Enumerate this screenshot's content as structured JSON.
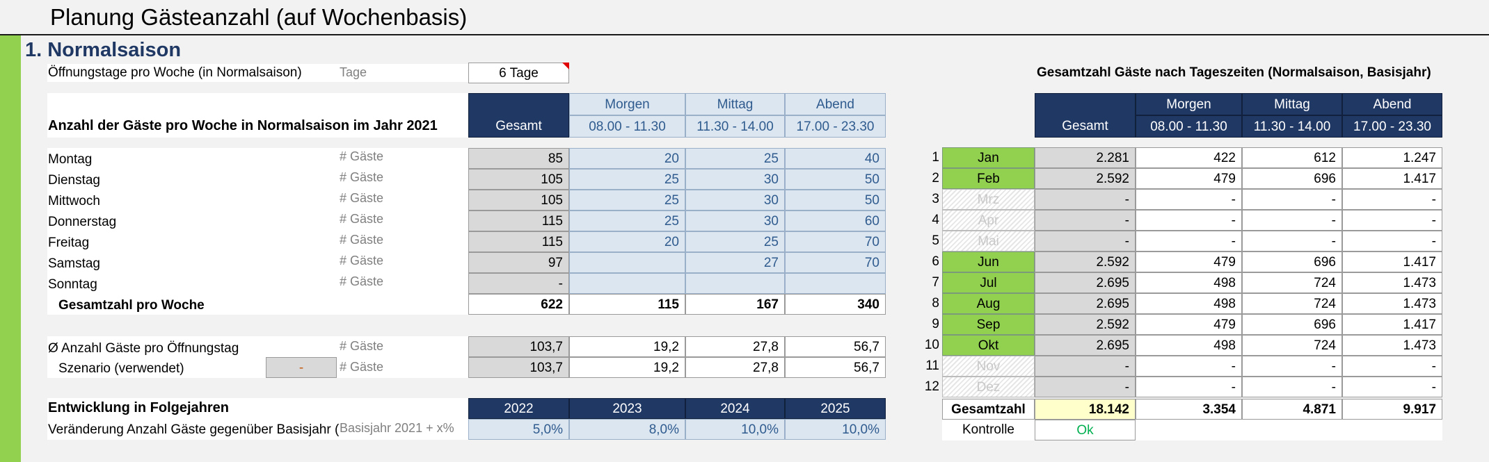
{
  "title": "Planung Gästeanzahl (auf Wochenbasis)",
  "section": "1. Normalsaison",
  "opening": {
    "label": "Öffnungstage pro Woche (in Normalsaison)",
    "unit": "Tage",
    "value": "6 Tage"
  },
  "weekly": {
    "title": "Anzahl der Gäste pro Woche in Normalsaison im Jahr 2021",
    "headers": {
      "gesamt": "Gesamt",
      "morgen": "Morgen",
      "mittag": "Mittag",
      "abend": "Abend",
      "morgen_time": "08.00 - 11.30",
      "mittag_time": "11.30 - 14.00",
      "abend_time": "17.00 - 23.30"
    },
    "unit": "# Gäste",
    "rows": [
      {
        "label": "Montag",
        "gesamt": "85",
        "morgen": "20",
        "mittag": "25",
        "abend": "40"
      },
      {
        "label": "Dienstag",
        "gesamt": "105",
        "morgen": "25",
        "mittag": "30",
        "abend": "50"
      },
      {
        "label": "Mittwoch",
        "gesamt": "105",
        "morgen": "25",
        "mittag": "30",
        "abend": "50"
      },
      {
        "label": "Donnerstag",
        "gesamt": "115",
        "morgen": "25",
        "mittag": "30",
        "abend": "60"
      },
      {
        "label": "Freitag",
        "gesamt": "115",
        "morgen": "20",
        "mittag": "25",
        "abend": "70"
      },
      {
        "label": "Samstag",
        "gesamt": "97",
        "morgen": "",
        "mittag": "27",
        "abend": "70"
      },
      {
        "label": "Sonntag",
        "gesamt": "-",
        "morgen": "",
        "mittag": "",
        "abend": ""
      }
    ],
    "total": {
      "label": "Gesamtzahl pro Woche",
      "gesamt": "622",
      "morgen": "115",
      "mittag": "167",
      "abend": "340"
    }
  },
  "average": {
    "label": "Ø Anzahl Gäste pro Öffnungstag",
    "unit": "# Gäste",
    "gesamt": "103,7",
    "morgen": "19,2",
    "mittag": "27,8",
    "abend": "56,7"
  },
  "scenario": {
    "label": "Szenario (verwendet)",
    "select": "-",
    "unit": "# Gäste",
    "gesamt": "103,7",
    "morgen": "19,2",
    "mittag": "27,8",
    "abend": "56,7"
  },
  "development": {
    "title": "Entwicklung in Folgejahren",
    "label": "Veränderung Anzahl Gäste gegenüber Basisjahr (",
    "unit": "Basisjahr 2021 + x%",
    "years": [
      "2022",
      "2023",
      "2024",
      "2025"
    ],
    "values": [
      "5,0%",
      "8,0%",
      "10,0%",
      "10,0%"
    ]
  },
  "monthly": {
    "title": "Gesamtzahl Gäste nach Tageszeiten (Normalsaison, Basisjahr)",
    "headers": {
      "gesamt": "Gesamt",
      "morgen": "Morgen",
      "mittag": "Mittag",
      "abend": "Abend",
      "morgen_time": "08.00 - 11.30",
      "mittag_time": "11.30 - 14.00",
      "abend_time": "17.00 - 23.30"
    },
    "rows": [
      {
        "num": "1",
        "month": "Jan",
        "active": true,
        "gesamt": "2.281",
        "morgen": "422",
        "mittag": "612",
        "abend": "1.247"
      },
      {
        "num": "2",
        "month": "Feb",
        "active": true,
        "gesamt": "2.592",
        "morgen": "479",
        "mittag": "696",
        "abend": "1.417"
      },
      {
        "num": "3",
        "month": "Mrz",
        "active": false,
        "gesamt": "-",
        "morgen": "-",
        "mittag": "-",
        "abend": "-"
      },
      {
        "num": "4",
        "month": "Apr",
        "active": false,
        "gesamt": "-",
        "morgen": "-",
        "mittag": "-",
        "abend": "-"
      },
      {
        "num": "5",
        "month": "Mai",
        "active": false,
        "gesamt": "-",
        "morgen": "-",
        "mittag": "-",
        "abend": "-"
      },
      {
        "num": "6",
        "month": "Jun",
        "active": true,
        "gesamt": "2.592",
        "morgen": "479",
        "mittag": "696",
        "abend": "1.417"
      },
      {
        "num": "7",
        "month": "Jul",
        "active": true,
        "gesamt": "2.695",
        "morgen": "498",
        "mittag": "724",
        "abend": "1.473"
      },
      {
        "num": "8",
        "month": "Aug",
        "active": true,
        "gesamt": "2.695",
        "morgen": "498",
        "mittag": "724",
        "abend": "1.473"
      },
      {
        "num": "9",
        "month": "Sep",
        "active": true,
        "gesamt": "2.592",
        "morgen": "479",
        "mittag": "696",
        "abend": "1.417"
      },
      {
        "num": "10",
        "month": "Okt",
        "active": true,
        "gesamt": "2.695",
        "morgen": "498",
        "mittag": "724",
        "abend": "1.473"
      },
      {
        "num": "11",
        "month": "Nov",
        "active": false,
        "gesamt": "-",
        "morgen": "-",
        "mittag": "-",
        "abend": "-"
      },
      {
        "num": "12",
        "month": "Dez",
        "active": false,
        "gesamt": "-",
        "morgen": "-",
        "mittag": "-",
        "abend": "-"
      }
    ],
    "total": {
      "label": "Gesamtzahl",
      "gesamt": "18.142",
      "morgen": "3.354",
      "mittag": "4.871",
      "abend": "9.917"
    },
    "control": {
      "label": "Kontrolle",
      "value": "Ok"
    }
  },
  "colors": {
    "navy": "#203864",
    "light_blue": "#dce6f1",
    "green": "#92d050",
    "gray": "#d9d9d9",
    "yellow": "#ffffcc",
    "ok_green": "#00b050"
  }
}
